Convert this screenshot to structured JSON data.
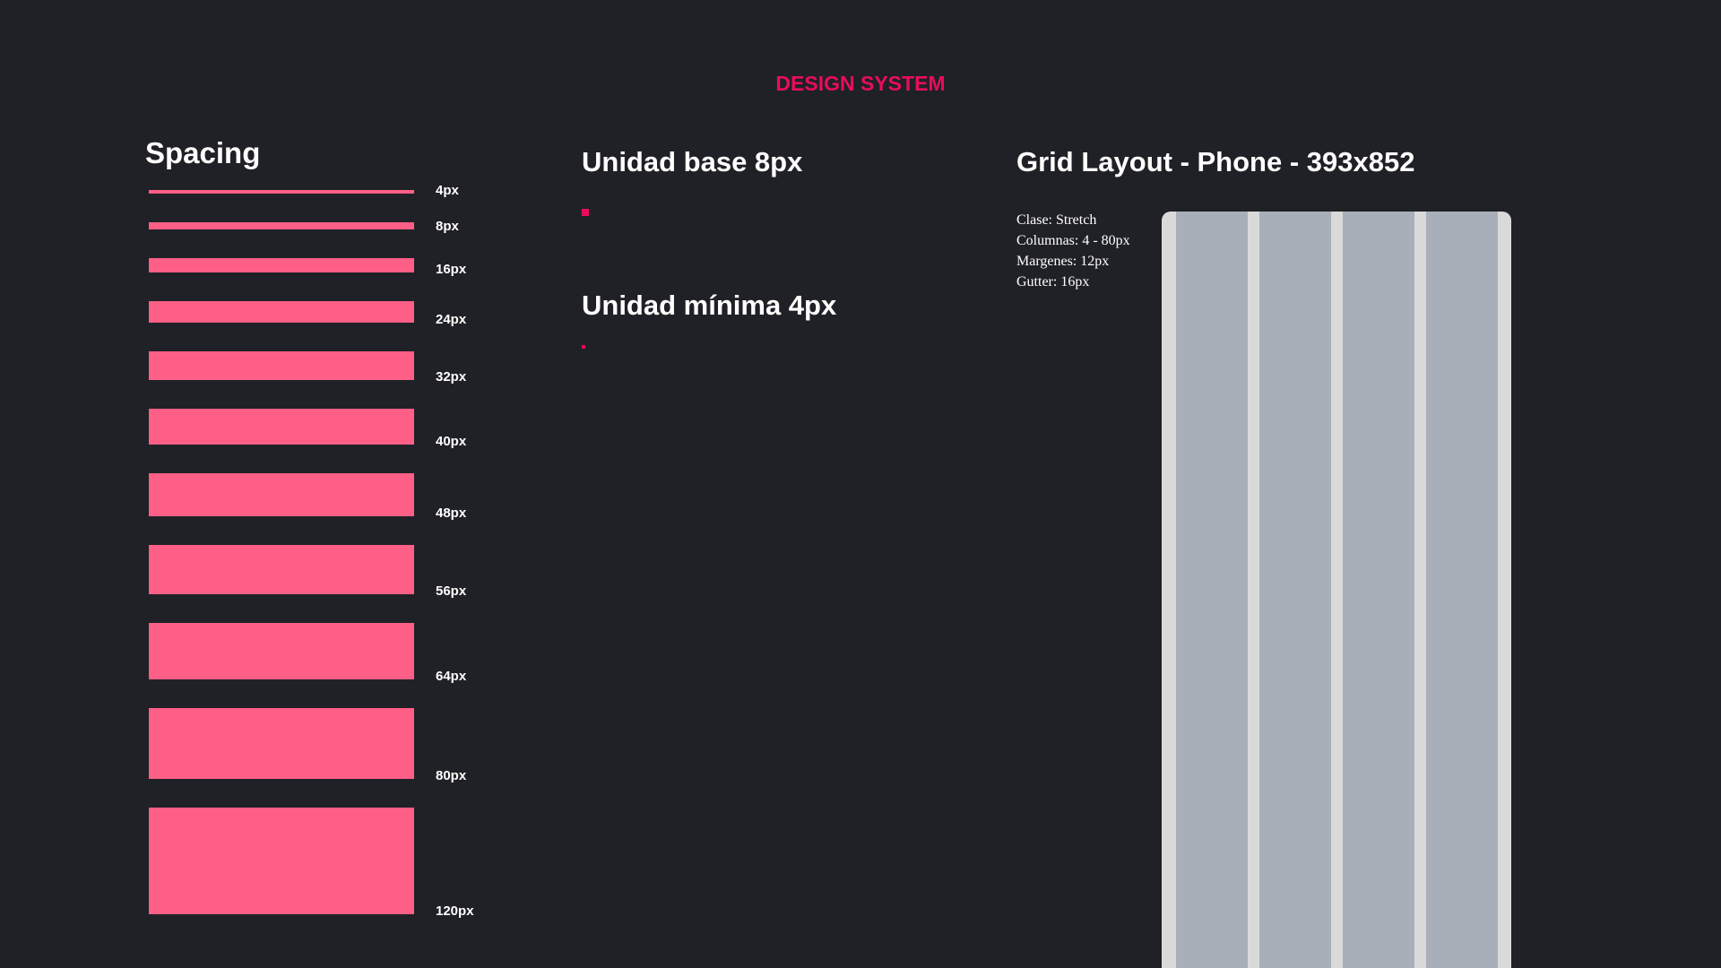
{
  "header": {
    "title": "DESIGN SYSTEM"
  },
  "spacing": {
    "title": "Spacing",
    "items": [
      {
        "label": "4px",
        "size": 4
      },
      {
        "label": "8px",
        "size": 8
      },
      {
        "label": "16px",
        "size": 16
      },
      {
        "label": "24px",
        "size": 24
      },
      {
        "label": "32px",
        "size": 32
      },
      {
        "label": "40px",
        "size": 40
      },
      {
        "label": "48px",
        "size": 48
      },
      {
        "label": "56px",
        "size": 56
      },
      {
        "label": "64px",
        "size": 64
      },
      {
        "label": "80px",
        "size": 80
      },
      {
        "label": "120px",
        "size": 120
      }
    ]
  },
  "units": {
    "base": {
      "title": "Unidad base 8px",
      "size": 8
    },
    "min": {
      "title": "Unidad mínima 4px",
      "size": 4
    }
  },
  "grid": {
    "title": "Grid Layout - Phone - 393x852",
    "specs": [
      "Clase: Stretch",
      "Columnas: 4 - 80px",
      "Margenes: 12px",
      "Gutter: 16px"
    ],
    "columns": 4
  },
  "colors": {
    "background": "#202126",
    "accent": "#e80d5c",
    "spacing_bar": "#fe5f86",
    "grid_column": "#a9afb9",
    "grid_gutter": "#d9d9da"
  }
}
